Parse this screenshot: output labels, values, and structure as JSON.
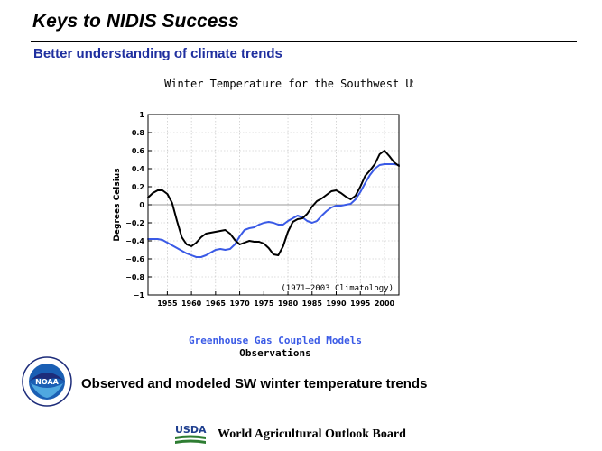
{
  "slide": {
    "title": "Keys to NIDIS Success",
    "subtitle": "Better understanding of climate trends",
    "caption": "Observed and modeled SW winter temperature trends",
    "footer": "World Agricultural Outlook Board",
    "usda_logo_text": "USDA",
    "noaa_logo_text": "NOAA"
  },
  "chart_data": {
    "type": "line",
    "title": "Winter Temperature for the Southwest US",
    "xlabel": "",
    "ylabel": "Degrees Celsius",
    "xlim": [
      1951,
      2003
    ],
    "ylim": [
      -1,
      1
    ],
    "xticks": [
      1955,
      1960,
      1965,
      1970,
      1975,
      1980,
      1985,
      1990,
      1995,
      2000
    ],
    "yticks": [
      1,
      0.8,
      0.6,
      0.4,
      0.2,
      0,
      -0.2,
      -0.4,
      -0.6,
      -0.8,
      -1
    ],
    "ytick_labels": [
      "1",
      "0.8",
      "0.6",
      "0.4",
      "0.2",
      "0",
      "−0.2",
      "−0.4",
      "−0.6",
      "−0.8",
      "−1"
    ],
    "grid": true,
    "annotation": "(1971–2003 Climatology)",
    "legend": [
      {
        "label": "Greenhouse Gas Coupled Models",
        "color": "#3a5ae6"
      },
      {
        "label": "Observations",
        "color": "#000000"
      }
    ],
    "series": [
      {
        "name": "Observations",
        "color": "#000000",
        "x": [
          1951,
          1952,
          1953,
          1954,
          1955,
          1956,
          1957,
          1958,
          1959,
          1960,
          1961,
          1962,
          1963,
          1964,
          1965,
          1966,
          1967,
          1968,
          1969,
          1970,
          1971,
          1972,
          1973,
          1974,
          1975,
          1976,
          1977,
          1978,
          1979,
          1980,
          1981,
          1982,
          1983,
          1984,
          1985,
          1986,
          1987,
          1988,
          1989,
          1990,
          1991,
          1992,
          1993,
          1994,
          1995,
          1996,
          1997,
          1998,
          1999,
          2000,
          2001,
          2002,
          2003
        ],
        "values": [
          0.08,
          0.13,
          0.16,
          0.16,
          0.12,
          0.02,
          -0.18,
          -0.36,
          -0.44,
          -0.46,
          -0.42,
          -0.36,
          -0.32,
          -0.31,
          -0.3,
          -0.29,
          -0.28,
          -0.32,
          -0.39,
          -0.44,
          -0.42,
          -0.4,
          -0.41,
          -0.41,
          -0.43,
          -0.48,
          -0.55,
          -0.56,
          -0.46,
          -0.3,
          -0.19,
          -0.16,
          -0.15,
          -0.1,
          -0.02,
          0.04,
          0.07,
          0.11,
          0.15,
          0.16,
          0.13,
          0.09,
          0.06,
          0.1,
          0.2,
          0.32,
          0.38,
          0.45,
          0.56,
          0.6,
          0.54,
          0.47,
          0.43
        ]
      },
      {
        "name": "Greenhouse Gas Coupled Models",
        "color": "#3a5ae6",
        "x": [
          1951,
          1952,
          1953,
          1954,
          1955,
          1956,
          1957,
          1958,
          1959,
          1960,
          1961,
          1962,
          1963,
          1964,
          1965,
          1966,
          1967,
          1968,
          1969,
          1970,
          1971,
          1972,
          1973,
          1974,
          1975,
          1976,
          1977,
          1978,
          1979,
          1980,
          1981,
          1982,
          1983,
          1984,
          1985,
          1986,
          1987,
          1988,
          1989,
          1990,
          1991,
          1992,
          1993,
          1994,
          1995,
          1996,
          1997,
          1998,
          1999,
          2000,
          2001,
          2002,
          2003
        ],
        "values": [
          -0.38,
          -0.38,
          -0.38,
          -0.39,
          -0.42,
          -0.45,
          -0.48,
          -0.51,
          -0.54,
          -0.56,
          -0.58,
          -0.58,
          -0.56,
          -0.53,
          -0.5,
          -0.49,
          -0.5,
          -0.49,
          -0.44,
          -0.35,
          -0.28,
          -0.26,
          -0.25,
          -0.22,
          -0.2,
          -0.19,
          -0.2,
          -0.22,
          -0.22,
          -0.18,
          -0.15,
          -0.12,
          -0.14,
          -0.18,
          -0.2,
          -0.18,
          -0.12,
          -0.07,
          -0.03,
          -0.01,
          -0.01,
          0.0,
          0.01,
          0.06,
          0.14,
          0.24,
          0.33,
          0.4,
          0.44,
          0.45,
          0.45,
          0.45,
          0.44
        ]
      }
    ]
  }
}
